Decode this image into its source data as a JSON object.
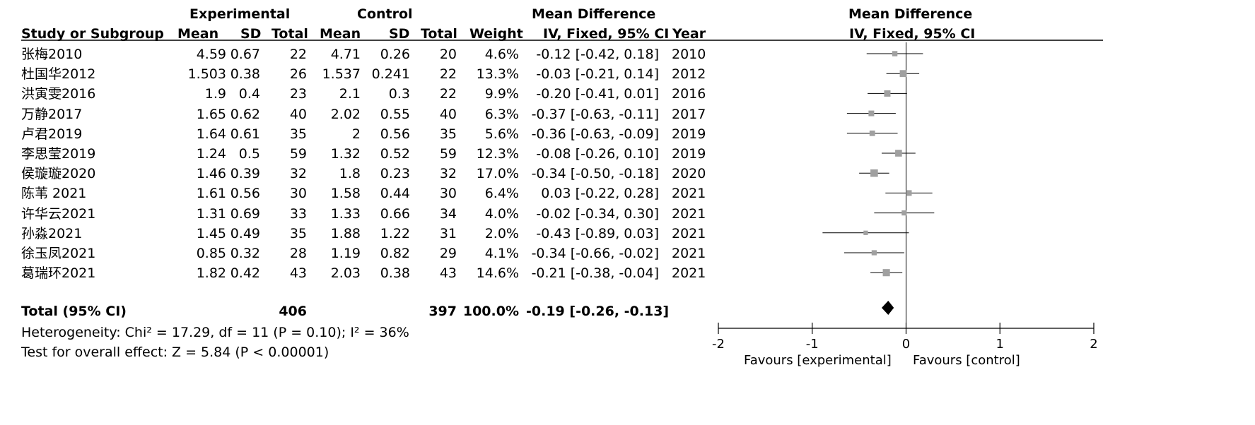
{
  "header": {
    "experimental": "Experimental",
    "control": "Control",
    "md_left": "Mean Difference",
    "md_right": "Mean Difference",
    "study": "Study or Subgroup",
    "mean_e": "Mean",
    "sd_e": "SD",
    "total_e": "Total",
    "mean_c": "Mean",
    "sd_c": "SD",
    "total_c": "Total",
    "weight": "Weight",
    "ci_left": "IV, Fixed, 95% CI",
    "year": "Year",
    "ci_right": "IV, Fixed, 95% CI"
  },
  "studies": [
    {
      "name": "张梅2010",
      "mean_e": "4.59",
      "sd_e": "0.67",
      "total_e": "22",
      "mean_c": "4.71",
      "sd_c": "0.26",
      "total_c": "20",
      "weight": "4.6%",
      "ci": "-0.12 [-0.42, 0.18]",
      "year": "2010"
    },
    {
      "name": "杜国华2012",
      "mean_e": "1.503",
      "sd_e": "0.38",
      "total_e": "26",
      "mean_c": "1.537",
      "sd_c": "0.241",
      "total_c": "22",
      "weight": "13.3%",
      "ci": "-0.03 [-0.21, 0.14]",
      "year": "2012"
    },
    {
      "name": "洪寅雯2016",
      "mean_e": "1.9",
      "sd_e": "0.4",
      "total_e": "23",
      "mean_c": "2.1",
      "sd_c": "0.3",
      "total_c": "22",
      "weight": "9.9%",
      "ci": "-0.20 [-0.41, 0.01]",
      "year": "2016"
    },
    {
      "name": "万静2017",
      "mean_e": "1.65",
      "sd_e": "0.62",
      "total_e": "40",
      "mean_c": "2.02",
      "sd_c": "0.55",
      "total_c": "40",
      "weight": "6.3%",
      "ci": "-0.37 [-0.63, -0.11]",
      "year": "2017"
    },
    {
      "name": "卢君2019",
      "mean_e": "1.64",
      "sd_e": "0.61",
      "total_e": "35",
      "mean_c": "2",
      "sd_c": "0.56",
      "total_c": "35",
      "weight": "5.6%",
      "ci": "-0.36 [-0.63, -0.09]",
      "year": "2019"
    },
    {
      "name": "李思莹2019",
      "mean_e": "1.24",
      "sd_e": "0.5",
      "total_e": "59",
      "mean_c": "1.32",
      "sd_c": "0.52",
      "total_c": "59",
      "weight": "12.3%",
      "ci": "-0.08 [-0.26, 0.10]",
      "year": "2019"
    },
    {
      "name": "侯璇璇2020",
      "mean_e": "1.46",
      "sd_e": "0.39",
      "total_e": "32",
      "mean_c": "1.8",
      "sd_c": "0.23",
      "total_c": "32",
      "weight": "17.0%",
      "ci": "-0.34 [-0.50, -0.18]",
      "year": "2020"
    },
    {
      "name": "陈苇 2021",
      "mean_e": "1.61",
      "sd_e": "0.56",
      "total_e": "30",
      "mean_c": "1.58",
      "sd_c": "0.44",
      "total_c": "30",
      "weight": "6.4%",
      "ci": "0.03 [-0.22, 0.28]",
      "year": "2021"
    },
    {
      "name": "许华云2021",
      "mean_e": "1.31",
      "sd_e": "0.69",
      "total_e": "33",
      "mean_c": "1.33",
      "sd_c": "0.66",
      "total_c": "34",
      "weight": "4.0%",
      "ci": "-0.02 [-0.34, 0.30]",
      "year": "2021"
    },
    {
      "name": "孙淼2021",
      "mean_e": "1.45",
      "sd_e": "0.49",
      "total_e": "35",
      "mean_c": "1.88",
      "sd_c": "1.22",
      "total_c": "31",
      "weight": "2.0%",
      "ci": "-0.43 [-0.89, 0.03]",
      "year": "2021"
    },
    {
      "name": "徐玉凤2021",
      "mean_e": "0.85",
      "sd_e": "0.32",
      "total_e": "28",
      "mean_c": "1.19",
      "sd_c": "0.82",
      "total_c": "29",
      "weight": "4.1%",
      "ci": "-0.34 [-0.66, -0.02]",
      "year": "2021"
    },
    {
      "name": "葛瑞环2021",
      "mean_e": "1.82",
      "sd_e": "0.42",
      "total_e": "43",
      "mean_c": "2.03",
      "sd_c": "0.38",
      "total_c": "43",
      "weight": "14.6%",
      "ci": "-0.21 [-0.38, -0.04]",
      "year": "2021"
    }
  ],
  "total": {
    "label": "Total (95% CI)",
    "total_e": "406",
    "total_c": "397",
    "weight": "100.0%",
    "ci": "-0.19 [-0.26, -0.13]"
  },
  "heterogeneity": "Heterogeneity: Chi² = 17.29, df = 11 (P = 0.10); I² = 36%",
  "overall_effect": "Test for overall effect: Z = 5.84 (P < 0.00001)",
  "axis": {
    "favours_left": "Favours [experimental]",
    "favours_right": "Favours [control]"
  },
  "colors": {
    "marker": "#a0a0a0",
    "line": "#000000"
  },
  "chart_data": {
    "type": "scatter",
    "subtype": "forest",
    "xlim": [
      -2,
      2
    ],
    "ticks": [
      -2,
      -1,
      0,
      1,
      2
    ],
    "tick_labels": [
      "-2",
      "-1",
      "0",
      "1",
      "2"
    ],
    "studies": [
      {
        "md": -0.12,
        "lo": -0.42,
        "hi": 0.18,
        "weight": 4.6
      },
      {
        "md": -0.03,
        "lo": -0.21,
        "hi": 0.14,
        "weight": 13.3
      },
      {
        "md": -0.2,
        "lo": -0.41,
        "hi": 0.01,
        "weight": 9.9
      },
      {
        "md": -0.37,
        "lo": -0.63,
        "hi": -0.11,
        "weight": 6.3
      },
      {
        "md": -0.36,
        "lo": -0.63,
        "hi": -0.09,
        "weight": 5.6
      },
      {
        "md": -0.08,
        "lo": -0.26,
        "hi": 0.1,
        "weight": 12.3
      },
      {
        "md": -0.34,
        "lo": -0.5,
        "hi": -0.18,
        "weight": 17.0
      },
      {
        "md": 0.03,
        "lo": -0.22,
        "hi": 0.28,
        "weight": 6.4
      },
      {
        "md": -0.02,
        "lo": -0.34,
        "hi": 0.3,
        "weight": 4.0
      },
      {
        "md": -0.43,
        "lo": -0.89,
        "hi": 0.03,
        "weight": 2.0
      },
      {
        "md": -0.34,
        "lo": -0.66,
        "hi": -0.02,
        "weight": 4.1
      },
      {
        "md": -0.21,
        "lo": -0.38,
        "hi": -0.04,
        "weight": 14.6
      }
    ],
    "pooled": {
      "md": -0.19,
      "lo": -0.26,
      "hi": -0.13
    }
  }
}
